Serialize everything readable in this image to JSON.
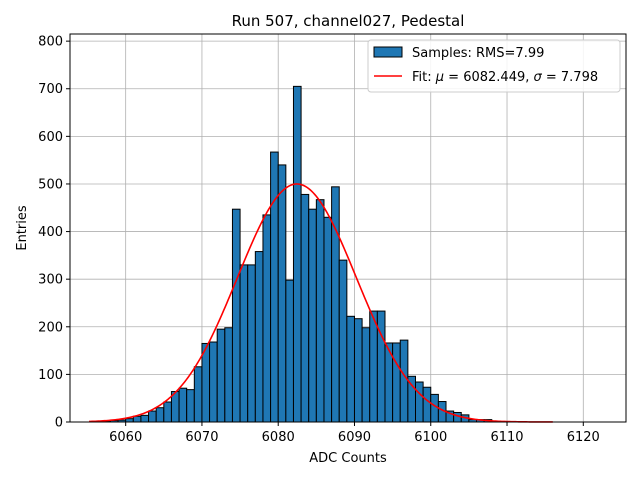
{
  "chart_data": {
    "type": "bar",
    "title": "Run 507, channel027, Pedestal",
    "xlabel": "ADC Counts",
    "ylabel": "Entries",
    "xlim": [
      6052.7,
      6125.6
    ],
    "ylim": [
      0,
      815
    ],
    "xticks": [
      6060,
      6070,
      6080,
      6090,
      6100,
      6110,
      6120
    ],
    "yticks": [
      0,
      100,
      200,
      300,
      400,
      500,
      600,
      700,
      800
    ],
    "grid": true,
    "legend_position": "top-right",
    "bin_width": 1,
    "bins": {
      "x_start": [
        6056,
        6057,
        6058,
        6059,
        6060,
        6061,
        6062,
        6063,
        6064,
        6065,
        6066,
        6067,
        6068,
        6069,
        6070,
        6071,
        6072,
        6073,
        6074,
        6075,
        6076,
        6077,
        6078,
        6079,
        6080,
        6081,
        6082,
        6083,
        6084,
        6085,
        6086,
        6087,
        6088,
        6089,
        6090,
        6091,
        6092,
        6093,
        6094,
        6095,
        6096,
        6097,
        6098,
        6099,
        6100,
        6101,
        6102,
        6103,
        6104,
        6105,
        6106,
        6107,
        6108,
        6109
      ],
      "values": [
        1,
        1,
        3,
        4,
        7,
        12,
        14,
        23,
        30,
        42,
        64,
        71,
        68,
        116,
        165,
        168,
        195,
        198,
        447,
        330,
        330,
        358,
        435,
        567,
        540,
        298,
        705,
        478,
        447,
        467,
        430,
        494,
        340,
        222,
        217,
        198,
        233,
        233,
        166,
        166,
        172,
        96,
        84,
        73,
        58,
        43,
        23,
        20,
        15,
        5,
        5,
        5,
        1,
        1
      ]
    },
    "fit_curve": {
      "mu": 6082.449,
      "sigma": 7.798,
      "amplitude": 500,
      "x_range": [
        6055.2,
        6116
      ]
    },
    "series": [
      {
        "name": "Samples: RMS=7.99",
        "color": "#1f77b4"
      },
      {
        "name": "Fit: μ = 6082.449, σ = 7.798",
        "color": "#ff0000"
      }
    ]
  },
  "legend": {
    "samples_label": "Samples: RMS=7.99",
    "fit_prefix": "Fit: ",
    "mu_symbol": "μ",
    "mu_text": " = 6082.449, ",
    "sigma_symbol": "σ",
    "sigma_text": " = 7.798"
  }
}
